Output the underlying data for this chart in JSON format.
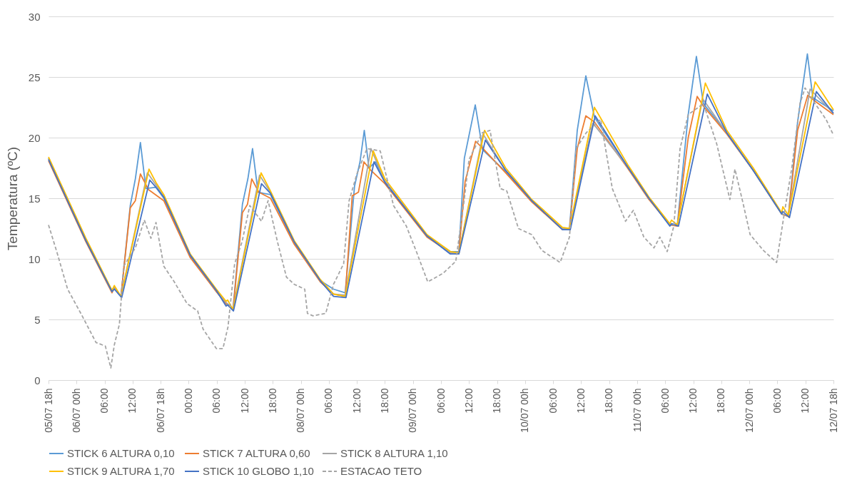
{
  "chart_data": {
    "type": "line",
    "ylabel": "Temperatura (ºC)",
    "xlim": [
      "--07-05T18:00",
      "--07-12T18:00"
    ],
    "ylim": [
      0,
      30
    ],
    "yticks": [
      0,
      5,
      10,
      15,
      20,
      25,
      30
    ],
    "xticks": [
      {
        "value": "--07-05T18:00",
        "label": "05/07 18h"
      },
      {
        "value": "--07-06T00:00",
        "label": "06/07 00h"
      },
      {
        "value": "--07-06T06:00",
        "label": "06:00"
      },
      {
        "value": "--07-06T12:00",
        "label": "12:00"
      },
      {
        "value": "--07-06T18:00",
        "label": "06/07 18h"
      },
      {
        "value": "--07-07T00:00",
        "label": "00:00"
      },
      {
        "value": "--07-07T06:00",
        "label": "06:00"
      },
      {
        "value": "--07-07T12:00",
        "label": "12:00"
      },
      {
        "value": "--07-07T18:00",
        "label": "18:00"
      },
      {
        "value": "--07-08T00:00",
        "label": "08/07 00h"
      },
      {
        "value": "--07-08T06:00",
        "label": "06:00"
      },
      {
        "value": "--07-08T12:00",
        "label": "12:00"
      },
      {
        "value": "--07-08T18:00",
        "label": "18:00"
      },
      {
        "value": "--07-09T00:00",
        "label": "09/07 00h"
      },
      {
        "value": "--07-09T06:00",
        "label": "06:00"
      },
      {
        "value": "--07-09T12:00",
        "label": "12:00"
      },
      {
        "value": "--07-09T18:00",
        "label": "18:00"
      },
      {
        "value": "--07-10T00:00",
        "label": "10/07 00h"
      },
      {
        "value": "--07-10T06:00",
        "label": "06:00"
      },
      {
        "value": "--07-10T12:00",
        "label": "12:00"
      },
      {
        "value": "--07-10T18:00",
        "label": "18:00"
      },
      {
        "value": "--07-11T00:00",
        "label": "11/07 00h"
      },
      {
        "value": "--07-11T06:00",
        "label": "06:00"
      },
      {
        "value": "--07-11T12:00",
        "label": "12:00"
      },
      {
        "value": "--07-11T18:00",
        "label": "18:00"
      },
      {
        "value": "--07-12T00:00",
        "label": "12/07 00h"
      },
      {
        "value": "--07-12T06:00",
        "label": "06:00"
      },
      {
        "value": "--07-12T12:00",
        "label": "12:00"
      },
      {
        "value": "--07-12T18:00",
        "label": "12/07 18h"
      }
    ],
    "grid": "y",
    "legend": "bottom",
    "series": [
      {
        "name": "STICK 6 ALTURA 0,10",
        "color": "#5b9bd5",
        "x": [
          "--07-05T18:00",
          "--07-06T02:00",
          "--07-06T07:35",
          "--07-06T08:05",
          "--07-06T09:30",
          "--07-06T11:30",
          "--07-06T12:35",
          "--07-06T13:40",
          "--07-06T14:50",
          "--07-06T17:00",
          "--07-06T18:40",
          "--07-07T00:20",
          "--07-07T05:55",
          "--07-07T08:00",
          "--07-07T09:30",
          "--07-07T11:30",
          "--07-07T12:40",
          "--07-07T13:40",
          "--07-07T14:50",
          "--07-07T16:00",
          "--07-07T17:30",
          "--07-07T22:35",
          "--07-08T04:10",
          "--07-08T07:00",
          "--07-08T09:30",
          "--07-08T11:30",
          "--07-08T12:40",
          "--07-08T13:35",
          "--07-08T14:35",
          "--07-08T16:00",
          "--07-08T18:00",
          "--07-09T03:00",
          "--07-09T08:00",
          "--07-09T09:50",
          "--07-09T11:00",
          "--07-09T13:20",
          "--07-09T14:55",
          "--07-09T19:50",
          "--07-10T01:25",
          "--07-10T08:00",
          "--07-10T09:30",
          "--07-10T11:10",
          "--07-10T13:00",
          "--07-10T14:50",
          "--07-10T16:00",
          "--07-10T21:55",
          "--07-11T02:30",
          "--07-11T07:00",
          "--07-11T08:35",
          "--07-11T10:55",
          "--07-11T12:40",
          "--07-11T14:10",
          "--07-11T19:10",
          "--07-12T00:50",
          "--07-12T06:55",
          "--07-12T08:20",
          "--07-12T10:20",
          "--07-12T12:25",
          "--07-12T13:35",
          "--07-12T18:00"
        ],
        "values": [
          18.3,
          11.6,
          7.3,
          7.7,
          6.9,
          14.4,
          16.6,
          19.6,
          15.8,
          15.9,
          15.0,
          10.2,
          7.3,
          6.3,
          5.9,
          14.5,
          16.6,
          19.1,
          15.5,
          15.4,
          15.3,
          11.3,
          8.2,
          7.5,
          7.2,
          16.0,
          18.0,
          20.6,
          17.5,
          18.0,
          16.4,
          11.9,
          10.6,
          10.6,
          18.3,
          22.7,
          19.0,
          17.2,
          14.8,
          12.5,
          12.5,
          20.6,
          25.1,
          21.7,
          21.0,
          17.6,
          15.0,
          12.8,
          12.8,
          21.9,
          26.7,
          22.8,
          20.4,
          17.3,
          13.7,
          13.5,
          21.3,
          26.9,
          23.3,
          22.2
        ]
      },
      {
        "name": "STICK 7 ALTURA 0,60",
        "color": "#ed7d31",
        "x": [
          "--07-05T18:00",
          "--07-06T02:00",
          "--07-06T07:35",
          "--07-06T08:05",
          "--07-06T09:30",
          "--07-06T11:30",
          "--07-06T12:35",
          "--07-06T13:40",
          "--07-06T15:25",
          "--07-06T18:40",
          "--07-07T00:20",
          "--07-07T05:55",
          "--07-07T08:00",
          "--07-07T09:30",
          "--07-07T11:30",
          "--07-07T12:35",
          "--07-07T13:30",
          "--07-07T15:00",
          "--07-07T17:30",
          "--07-07T22:35",
          "--07-08T04:10",
          "--07-08T07:00",
          "--07-08T09:30",
          "--07-08T11:00",
          "--07-08T12:20",
          "--07-08T13:30",
          "--07-08T15:00",
          "--07-08T18:00",
          "--07-09T03:00",
          "--07-09T08:00",
          "--07-09T09:50",
          "--07-09T11:10",
          "--07-09T13:25",
          "--07-09T15:00",
          "--07-09T19:50",
          "--07-10T01:25",
          "--07-10T08:00",
          "--07-10T09:30",
          "--07-10T11:10",
          "--07-10T13:00",
          "--07-10T14:50",
          "--07-10T21:55",
          "--07-11T02:30",
          "--07-11T07:00",
          "--07-11T08:35",
          "--07-11T10:55",
          "--07-11T12:50",
          "--07-11T14:10",
          "--07-11T19:10",
          "--07-12T00:50",
          "--07-12T06:55",
          "--07-12T08:20",
          "--07-12T10:20",
          "--07-12T12:30",
          "--07-12T14:05",
          "--07-12T18:00"
        ],
        "values": [
          18.1,
          11.4,
          7.2,
          7.6,
          6.9,
          14.2,
          14.8,
          17.0,
          15.7,
          14.8,
          10.1,
          7.3,
          6.3,
          5.8,
          13.8,
          14.5,
          16.6,
          15.5,
          15.0,
          11.2,
          8.1,
          7.1,
          6.9,
          15.2,
          15.5,
          18.0,
          17.3,
          16.2,
          11.8,
          10.5,
          10.5,
          16.4,
          19.7,
          19.1,
          17.1,
          14.7,
          12.4,
          12.4,
          19.1,
          21.8,
          21.3,
          17.5,
          14.9,
          12.8,
          12.7,
          20.0,
          23.4,
          22.6,
          20.3,
          17.3,
          13.7,
          13.5,
          20.6,
          23.5,
          23.0,
          21.9
        ]
      },
      {
        "name": "STICK 8 ALTURA 1,10",
        "color": "#a5a5a5",
        "x": [
          "--07-05T18:00",
          "--07-06T02:00",
          "--07-06T07:35",
          "--07-06T08:05",
          "--07-06T09:30",
          "--07-06T15:10",
          "--07-06T17:00",
          "--07-06T18:40",
          "--07-07T00:20",
          "--07-07T05:55",
          "--07-07T08:00",
          "--07-07T09:30",
          "--07-07T15:10",
          "--07-07T17:30",
          "--07-07T22:35",
          "--07-08T04:10",
          "--07-08T07:00",
          "--07-08T09:30",
          "--07-08T15:00",
          "--07-08T18:00",
          "--07-09T03:00",
          "--07-09T08:00",
          "--07-09T09:50",
          "--07-09T15:00",
          "--07-09T19:50",
          "--07-10T01:25",
          "--07-10T08:00",
          "--07-10T09:30",
          "--07-10T14:30",
          "--07-10T21:55",
          "--07-11T02:30",
          "--07-11T07:00",
          "--07-11T08:35",
          "--07-11T14:00",
          "--07-11T19:10",
          "--07-12T00:50",
          "--07-12T06:55",
          "--07-12T08:20",
          "--07-12T13:00",
          "--07-12T18:00"
        ],
        "values": [
          18.3,
          11.6,
          7.3,
          7.6,
          6.9,
          17.1,
          16.1,
          15.1,
          10.3,
          7.4,
          6.4,
          5.9,
          16.9,
          15.5,
          11.4,
          8.2,
          7.1,
          7.0,
          19.1,
          16.4,
          11.9,
          10.5,
          10.5,
          20.3,
          17.3,
          14.8,
          12.5,
          12.5,
          21.2,
          17.6,
          15.0,
          12.8,
          12.8,
          23.2,
          20.4,
          17.3,
          13.7,
          13.6,
          24.0,
          22.0
        ]
      },
      {
        "name": "STICK 9 ALTURA 1,70",
        "color": "#ffc000",
        "x": [
          "--07-05T18:00",
          "--07-06T02:00",
          "--07-06T07:35",
          "--07-06T08:05",
          "--07-06T09:30",
          "--07-06T15:30",
          "--07-06T17:00",
          "--07-06T18:40",
          "--07-07T00:20",
          "--07-07T05:55",
          "--07-07T08:00",
          "--07-07T08:20",
          "--07-07T09:30",
          "--07-07T15:30",
          "--07-07T17:30",
          "--07-07T22:35",
          "--07-08T04:10",
          "--07-08T07:00",
          "--07-08T09:30",
          "--07-08T15:30",
          "--07-08T18:00",
          "--07-09T03:00",
          "--07-09T08:00",
          "--07-09T09:50",
          "--07-09T15:20",
          "--07-09T19:50",
          "--07-10T01:25",
          "--07-10T08:00",
          "--07-10T09:30",
          "--07-10T14:50",
          "--07-10T21:55",
          "--07-11T02:30",
          "--07-11T07:00",
          "--07-11T07:20",
          "--07-11T08:35",
          "--07-11T14:35",
          "--07-11T19:10",
          "--07-12T00:50",
          "--07-12T06:55",
          "--07-12T07:10",
          "--07-12T08:20",
          "--07-12T14:05",
          "--07-12T18:00"
        ],
        "values": [
          18.4,
          11.7,
          7.4,
          7.8,
          6.9,
          17.4,
          16.3,
          15.3,
          10.4,
          7.5,
          6.5,
          6.6,
          5.8,
          17.1,
          15.6,
          11.5,
          8.3,
          7.1,
          6.9,
          18.9,
          16.6,
          12.0,
          10.6,
          10.5,
          20.6,
          17.5,
          14.9,
          12.6,
          12.5,
          22.5,
          17.8,
          15.1,
          12.9,
          13.2,
          12.8,
          24.5,
          20.6,
          17.5,
          13.8,
          14.3,
          13.6,
          24.6,
          22.3
        ]
      },
      {
        "name": "STICK 10 GLOBO 1,10",
        "color": "#4472c4",
        "x": [
          "--07-05T18:00",
          "--07-06T02:00",
          "--07-06T07:35",
          "--07-06T08:05",
          "--07-06T09:40",
          "--07-06T15:40",
          "--07-06T17:00",
          "--07-06T18:40",
          "--07-07T00:20",
          "--07-07T05:55",
          "--07-07T08:00",
          "--07-07T08:20",
          "--07-07T09:35",
          "--07-07T15:35",
          "--07-07T17:30",
          "--07-07T22:35",
          "--07-08T04:10",
          "--07-08T07:00",
          "--07-08T09:40",
          "--07-08T15:40",
          "--07-08T18:00",
          "--07-09T03:00",
          "--07-09T08:00",
          "--07-09T09:50",
          "--07-09T15:30",
          "--07-09T19:50",
          "--07-10T01:25",
          "--07-10T08:00",
          "--07-10T09:40",
          "--07-10T15:00",
          "--07-10T21:55",
          "--07-11T02:30",
          "--07-11T07:00",
          "--07-11T07:20",
          "--07-11T08:50",
          "--07-11T15:00",
          "--07-11T19:10",
          "--07-12T00:50",
          "--07-12T06:55",
          "--07-12T07:10",
          "--07-12T08:35",
          "--07-12T14:20",
          "--07-12T18:00"
        ],
        "values": [
          18.2,
          11.5,
          7.3,
          7.5,
          6.8,
          16.5,
          15.9,
          15.1,
          10.3,
          7.4,
          6.1,
          6.2,
          5.7,
          16.2,
          15.4,
          11.4,
          8.2,
          6.9,
          6.8,
          18.0,
          16.3,
          11.9,
          10.4,
          10.4,
          19.8,
          17.3,
          14.8,
          12.4,
          12.4,
          21.8,
          17.6,
          15.0,
          12.7,
          12.9,
          12.7,
          23.6,
          20.4,
          17.3,
          13.7,
          13.9,
          13.4,
          23.8,
          22.0
        ]
      },
      {
        "name": "ESTACAO TETO",
        "color": "#a5a5a5",
        "line_style": "dashed",
        "x": [
          "--07-05T18:00",
          "--07-05T19:50",
          "--07-05T22:05",
          "--07-06T00:55",
          "--07-06T04:10",
          "--07-06T06:10",
          "--07-06T07:20",
          "--07-06T08:05",
          "--07-06T09:10",
          "--07-06T10:05",
          "--07-06T12:35",
          "--07-06T14:30",
          "--07-06T15:55",
          "--07-06T17:00",
          "--07-06T18:40",
          "--07-06T20:55",
          "--07-06T23:40",
          "--07-07T01:55",
          "--07-07T03:05",
          "--07-07T05:55",
          "--07-07T07:20",
          "--07-07T08:25",
          "--07-07T09:50",
          "--07-07T11:25",
          "--07-07T13:05",
          "--07-07T15:35",
          "--07-07T17:00",
          "--07-07T19:00",
          "--07-07T20:55",
          "--07-07T22:35",
          "--07-08T00:50",
          "--07-08T01:25",
          "--07-08T02:35",
          "--07-08T05:20",
          "--07-08T07:00",
          "--07-08T09:10",
          "--07-08T10:20",
          "--07-08T12:00",
          "--07-08T14:10",
          "--07-08T17:00",
          "--07-08T19:50",
          "--07-08T22:35",
          "--07-09T00:50",
          "--07-09T03:10",
          "--07-09T06:25",
          "--07-09T09:10",
          "--07-09T10:55",
          "--07-09T12:00",
          "--07-09T14:50",
          "--07-09T16:30",
          "--07-09T18:40",
          "--07-09T20:05",
          "--07-09T22:35",
          "--07-10T01:25",
          "--07-10T03:35",
          "--07-10T07:30",
          "--07-10T09:30",
          "--07-10T10:55",
          "--07-10T13:05",
          "--07-10T16:10",
          "--07-10T18:40",
          "--07-10T21:30",
          "--07-10T23:10",
          "--07-11T01:25",
          "--07-11T03:35",
          "--07-11T04:50",
          "--07-11T06:25",
          "--07-11T07:50",
          "--07-11T09:10",
          "--07-11T10:55",
          "--07-11T14:10",
          "--07-11T17:00",
          "--07-11T19:50",
          "--07-11T20:55",
          "--07-11T22:35",
          "--07-12T00:10",
          "--07-12T03:00",
          "--07-12T05:50",
          "--07-12T07:30",
          "--07-12T09:05",
          "--07-12T10:50",
          "--07-12T11:55",
          "--07-12T14:05",
          "--07-12T16:25",
          "--07-12T18:00"
        ],
        "values": [
          12.8,
          10.5,
          7.5,
          5.5,
          3.1,
          2.8,
          1.0,
          2.9,
          4.6,
          9.4,
          10.9,
          13.2,
          11.7,
          13.0,
          9.4,
          8.1,
          6.3,
          5.7,
          4.2,
          2.6,
          2.6,
          4.4,
          9.6,
          11.4,
          14.4,
          13.1,
          14.8,
          11.4,
          8.5,
          7.9,
          7.5,
          5.5,
          5.3,
          5.5,
          7.9,
          9.6,
          14.8,
          17.0,
          19.1,
          18.9,
          14.4,
          12.7,
          10.5,
          8.1,
          8.8,
          9.8,
          14.7,
          18.2,
          20.4,
          20.6,
          15.8,
          15.6,
          12.5,
          12.0,
          10.7,
          9.7,
          11.8,
          19.1,
          20.4,
          21.5,
          15.8,
          13.1,
          14.0,
          11.8,
          10.9,
          11.8,
          10.6,
          12.7,
          19.1,
          21.9,
          22.8,
          19.5,
          14.9,
          17.4,
          14.7,
          12.0,
          10.7,
          9.7,
          13.8,
          17.5,
          22.8,
          24.1,
          22.8,
          21.5,
          20.2
        ]
      }
    ]
  }
}
